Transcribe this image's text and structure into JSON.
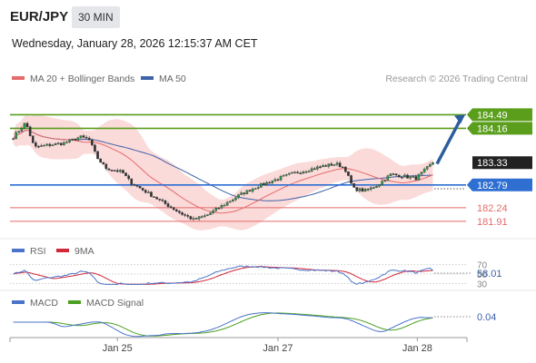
{
  "header": {
    "symbol": "EUR/JPY",
    "interval": "30 MIN",
    "timestamp": "Wednesday, January 28, 2026 12:15:37 AM CET"
  },
  "legend": {
    "ma20_label": "MA 20 + Bollinger Bands",
    "ma50_label": "MA 50",
    "credit": "Research © 2026 Trading Central",
    "rsi_label": "RSI",
    "rsi_ma_label": "9MA",
    "macd_label": "MACD",
    "macd_signal_label": "MACD Signal"
  },
  "colors": {
    "green_levels": "#5a9e1c",
    "blue_level": "#2e6fd1",
    "red_levels": "#e66a6a",
    "arrow": "#2c5e9e",
    "bollinger_fill": "#fbdada",
    "ma20": "#e66a6a",
    "ma50": "#3e63a8",
    "rsi": "#4a73c9",
    "rsi_ma": "#d2283a",
    "macd": "#4a73c9",
    "macd_signal": "#4aa020",
    "last_price_tag": "#222222"
  },
  "chart_data": [
    {
      "type": "candlestick",
      "x_ticks": [
        "Jan 25",
        "Jan 27",
        "Jan 28"
      ],
      "ylim": [
        181.6,
        184.85
      ],
      "last_price": 183.33,
      "price_levels": [
        {
          "label": "184.49",
          "value": 184.49,
          "kind": "resistance",
          "color": "green"
        },
        {
          "label": "184.16",
          "value": 184.16,
          "kind": "resistance",
          "color": "green"
        },
        {
          "label": "182.79",
          "value": 182.79,
          "kind": "pivot",
          "color": "blue"
        },
        {
          "label": "182.24",
          "value": 182.24,
          "kind": "support",
          "color": "red"
        },
        {
          "label": "181.91",
          "value": 181.91,
          "kind": "support",
          "color": "red"
        }
      ],
      "last_price_label": "183.33",
      "projection": {
        "direction": "up",
        "from": 183.3,
        "to": 184.49
      },
      "indicators": [
        "MA 20 + Bollinger Bands",
        "MA 50"
      ]
    },
    {
      "type": "line",
      "name": "RSI",
      "series": [
        "RSI",
        "9MA"
      ],
      "y_ticks": [
        "70",
        "50",
        "30"
      ],
      "ylim": [
        25,
        75
      ],
      "last_value": 58.01,
      "last_value_label": "58.01"
    },
    {
      "type": "line",
      "name": "MACD",
      "series": [
        "MACD",
        "MACD Signal"
      ],
      "last_value": 0.04,
      "last_value_label": "0.04"
    }
  ]
}
